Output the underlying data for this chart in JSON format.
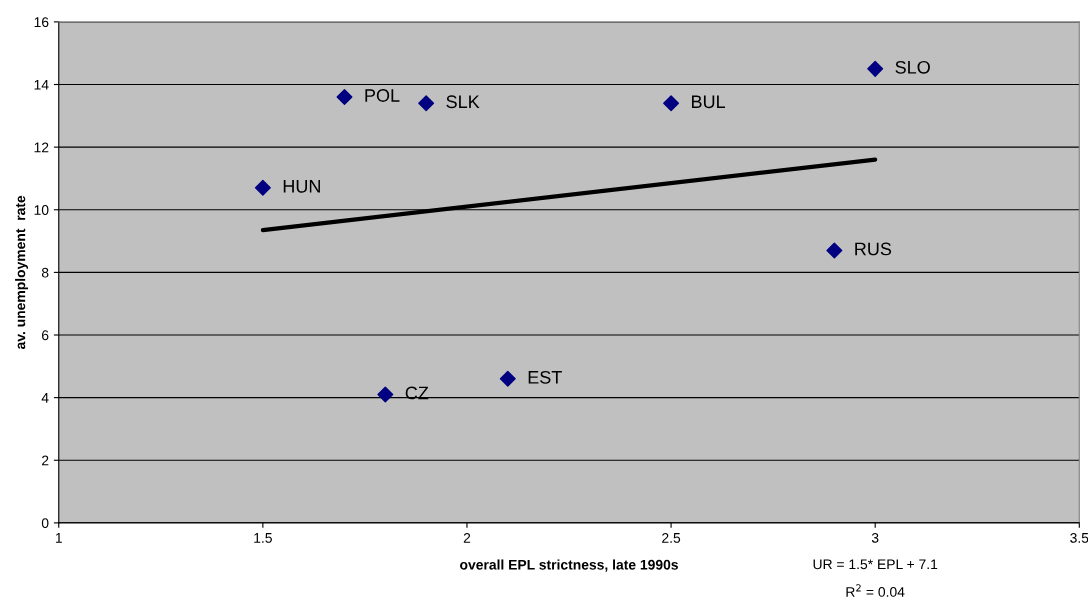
{
  "chart_data": {
    "type": "scatter",
    "xlabel": "overall EPL strictness, late 1990s",
    "ylabel": "av. unemployment  rate",
    "series": [
      {
        "color": "#000080",
        "marker": "diamond",
        "x": [
          1.5,
          1.7,
          1.9,
          2.5,
          3.0,
          2.9,
          1.8,
          2.1
        ],
        "values": [
          10.7,
          13.6,
          13.4,
          13.4,
          14.5,
          8.7,
          4.1,
          4.6
        ]
      },
      {
        "type": "line",
        "color": "#000000",
        "marker": "none",
        "line_style": "solid",
        "x": [
          1.5,
          3.0
        ],
        "values": [
          9.35,
          11.6
        ]
      }
    ],
    "annotations": [
      {
        "text": "HUN",
        "x": 1.5,
        "y": 10.7
      },
      {
        "text": "POL",
        "x": 1.7,
        "y": 13.6
      },
      {
        "text": "SLK",
        "x": 1.9,
        "y": 13.4
      },
      {
        "text": "BUL",
        "x": 2.5,
        "y": 13.4
      },
      {
        "text": "SLO",
        "x": 3.0,
        "y": 14.5
      },
      {
        "text": "RUS",
        "x": 2.9,
        "y": 8.7
      },
      {
        "text": "CZ",
        "x": 1.8,
        "y": 4.1
      },
      {
        "text": "EST",
        "x": 2.1,
        "y": 4.6
      },
      "UR = 1.5* EPL + 7.1",
      "R$^{2}$ = 0.04"
    ],
    "xlim": [
      1,
      3.5
    ],
    "xticks": [
      1,
      1.5,
      2,
      2.5,
      3,
      3.5
    ],
    "ylim": [
      0,
      16
    ],
    "yticks": [
      0,
      2,
      4,
      6,
      8,
      10,
      12,
      14,
      16
    ],
    "grid": "y",
    "legend": false
  }
}
